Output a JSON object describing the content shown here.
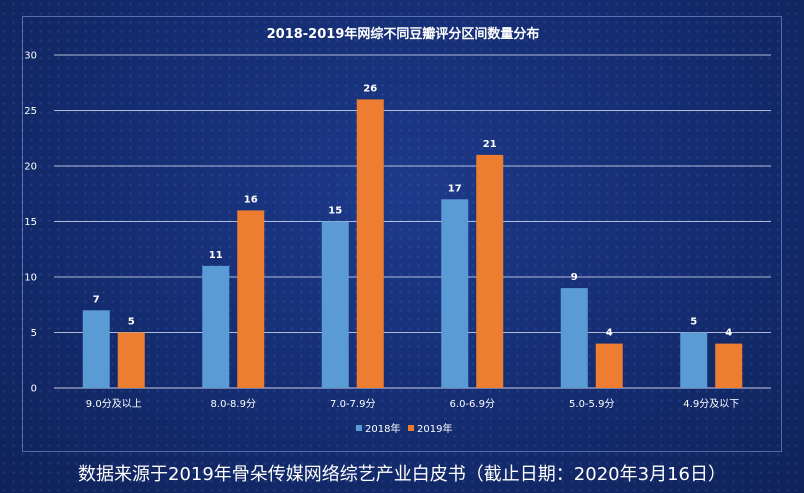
{
  "chart_data": {
    "type": "bar",
    "title": "2018-2019年网综不同豆瓣评分区间数量分布",
    "xlabel": "",
    "ylabel": "",
    "categories": [
      "9.0分及以上",
      "8.0-8.9分",
      "7.0-7.9分",
      "6.0-6.9分",
      "5.0-5.9分",
      "4.9分及以下"
    ],
    "series": [
      {
        "name": "2018年",
        "values": [
          7,
          11,
          15,
          17,
          9,
          5
        ],
        "color": "#5b9bd5"
      },
      {
        "name": "2019年",
        "values": [
          5,
          16,
          26,
          21,
          4,
          4
        ],
        "color": "#ed7d31"
      }
    ],
    "ylim": [
      0,
      30
    ],
    "yticks": [
      0,
      5,
      10,
      15,
      20,
      25,
      30
    ],
    "grid": true,
    "legend_position": "bottom-center",
    "data_labels": true
  },
  "footer": {
    "caption": "数据来源于2019年骨朵传媒网络综艺产业白皮书（截止日期：2020年3月16日）"
  }
}
